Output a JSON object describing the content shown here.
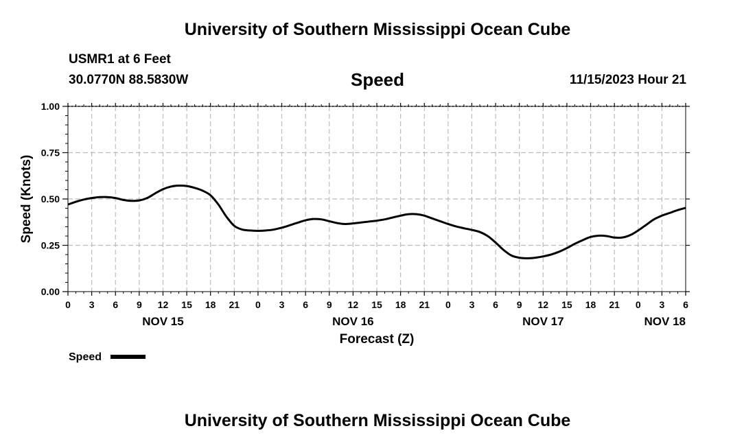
{
  "page": {
    "title": "University of Southern Mississippi Ocean Cube",
    "footer_title": "University of Southern Mississippi Ocean Cube",
    "station": "USMR1 at 6 Feet",
    "coords": "30.0770N  88.5830W",
    "chart_name": "Speed",
    "run_time": "11/15/2023 Hour 21",
    "colors": {
      "line": "#000000",
      "grid": "#bbbbbb",
      "background": "#ffffff"
    }
  },
  "chart_data": {
    "type": "line",
    "title": "Speed",
    "xlabel": "Forecast (Z)",
    "ylabel": "Speed (Knots)",
    "ylim": [
      0,
      1
    ],
    "y_ticks": [
      "0.00",
      "0.25",
      "0.50",
      "0.75",
      "1.00"
    ],
    "xlim_hours": [
      0,
      78
    ],
    "x_tick_labels": [
      "0",
      "3",
      "6",
      "9",
      "12",
      "15",
      "18",
      "21",
      "0",
      "3",
      "6",
      "9",
      "12",
      "15",
      "18",
      "21",
      "0",
      "3",
      "6",
      "9",
      "12",
      "15",
      "18",
      "21",
      "0",
      "3",
      "6"
    ],
    "day_labels": [
      {
        "label": "NOV 15",
        "hour": 12
      },
      {
        "label": "NOV 16",
        "hour": 36
      },
      {
        "label": "NOV 17",
        "hour": 60
      },
      {
        "label": "NOV 18",
        "hour": 78
      }
    ],
    "grid": true,
    "legend": {
      "label": "Speed",
      "position": "bottom-left"
    },
    "series": [
      {
        "name": "Speed",
        "x_hours": [
          0,
          1,
          2,
          3,
          4,
          5,
          6,
          7,
          8,
          9,
          10,
          11,
          12,
          13,
          14,
          15,
          16,
          17,
          18,
          19,
          20,
          21,
          22,
          23,
          24,
          25,
          26,
          27,
          28,
          29,
          30,
          31,
          32,
          33,
          34,
          35,
          36,
          37,
          38,
          39,
          40,
          41,
          42,
          43,
          44,
          45,
          46,
          47,
          48,
          49,
          50,
          51,
          52,
          53,
          54,
          55,
          56,
          57,
          58,
          59,
          60,
          61,
          62,
          63,
          64,
          65,
          66,
          67,
          68,
          69,
          70,
          71,
          72,
          73,
          74,
          75,
          76,
          77,
          78
        ],
        "values": [
          0.47,
          0.485,
          0.497,
          0.505,
          0.51,
          0.51,
          0.505,
          0.495,
          0.49,
          0.492,
          0.505,
          0.53,
          0.553,
          0.567,
          0.572,
          0.57,
          0.56,
          0.545,
          0.52,
          0.47,
          0.405,
          0.355,
          0.335,
          0.33,
          0.328,
          0.33,
          0.335,
          0.345,
          0.358,
          0.372,
          0.385,
          0.392,
          0.39,
          0.38,
          0.37,
          0.365,
          0.368,
          0.373,
          0.378,
          0.383,
          0.39,
          0.4,
          0.41,
          0.418,
          0.418,
          0.41,
          0.395,
          0.38,
          0.365,
          0.352,
          0.342,
          0.333,
          0.322,
          0.3,
          0.265,
          0.225,
          0.195,
          0.183,
          0.18,
          0.183,
          0.19,
          0.2,
          0.215,
          0.235,
          0.258,
          0.278,
          0.295,
          0.302,
          0.3,
          0.292,
          0.292,
          0.305,
          0.33,
          0.36,
          0.39,
          0.41,
          0.425,
          0.44,
          0.452
        ]
      }
    ]
  }
}
